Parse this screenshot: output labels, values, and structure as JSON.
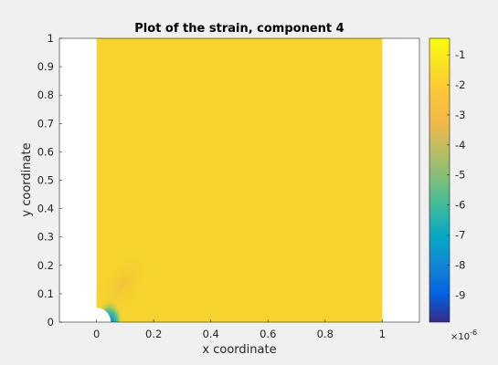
{
  "chart_data": {
    "type": "heatmap",
    "title": "Plot of the strain, component 4",
    "xlabel": "x coordinate",
    "ylabel": "y coordinate",
    "xlim": [
      -0.13,
      1.13
    ],
    "ylim": [
      0,
      1
    ],
    "xticks": [
      0,
      0.2,
      0.4,
      0.6,
      0.8,
      1
    ],
    "xtick_labels": [
      "0",
      "0.2",
      "0.4",
      "0.6",
      "0.8",
      "1"
    ],
    "yticks": [
      0,
      0.1,
      0.2,
      0.3,
      0.4,
      0.5,
      0.6,
      0.7,
      0.8,
      0.9,
      1
    ],
    "ytick_labels": [
      "0",
      "0.1",
      "0.2",
      "0.3",
      "0.4",
      "0.5",
      "0.6",
      "0.7",
      "0.8",
      "0.9",
      "1"
    ],
    "domain": {
      "x": [
        0,
        1
      ],
      "y": [
        0,
        1
      ]
    },
    "hole": {
      "center": [
        0,
        0
      ],
      "radius": 0.05
    },
    "background_value": -1.7,
    "colorbar": {
      "colormap": "parula",
      "range": [
        -9.9,
        -0.45
      ],
      "ticks": [
        -1,
        -2,
        -3,
        -4,
        -5,
        -6,
        -7,
        -8,
        -9
      ],
      "tick_labels": [
        "-1",
        "-2",
        "-3",
        "-4",
        "-5",
        "-6",
        "-7",
        "-8",
        "-9"
      ],
      "exponent_label": "×10",
      "exponent_power": "-6"
    },
    "features": [
      {
        "description": "lobe",
        "center": [
          0.09,
          0.13
        ],
        "value": -1.95
      },
      {
        "description": "near-hole",
        "center": [
          0.045,
          0.035
        ],
        "value": -9.5
      }
    ]
  },
  "colors": {
    "figure_background": "#f0f0f0",
    "axes_background": "#ffffff",
    "field": "#f6d42d"
  }
}
